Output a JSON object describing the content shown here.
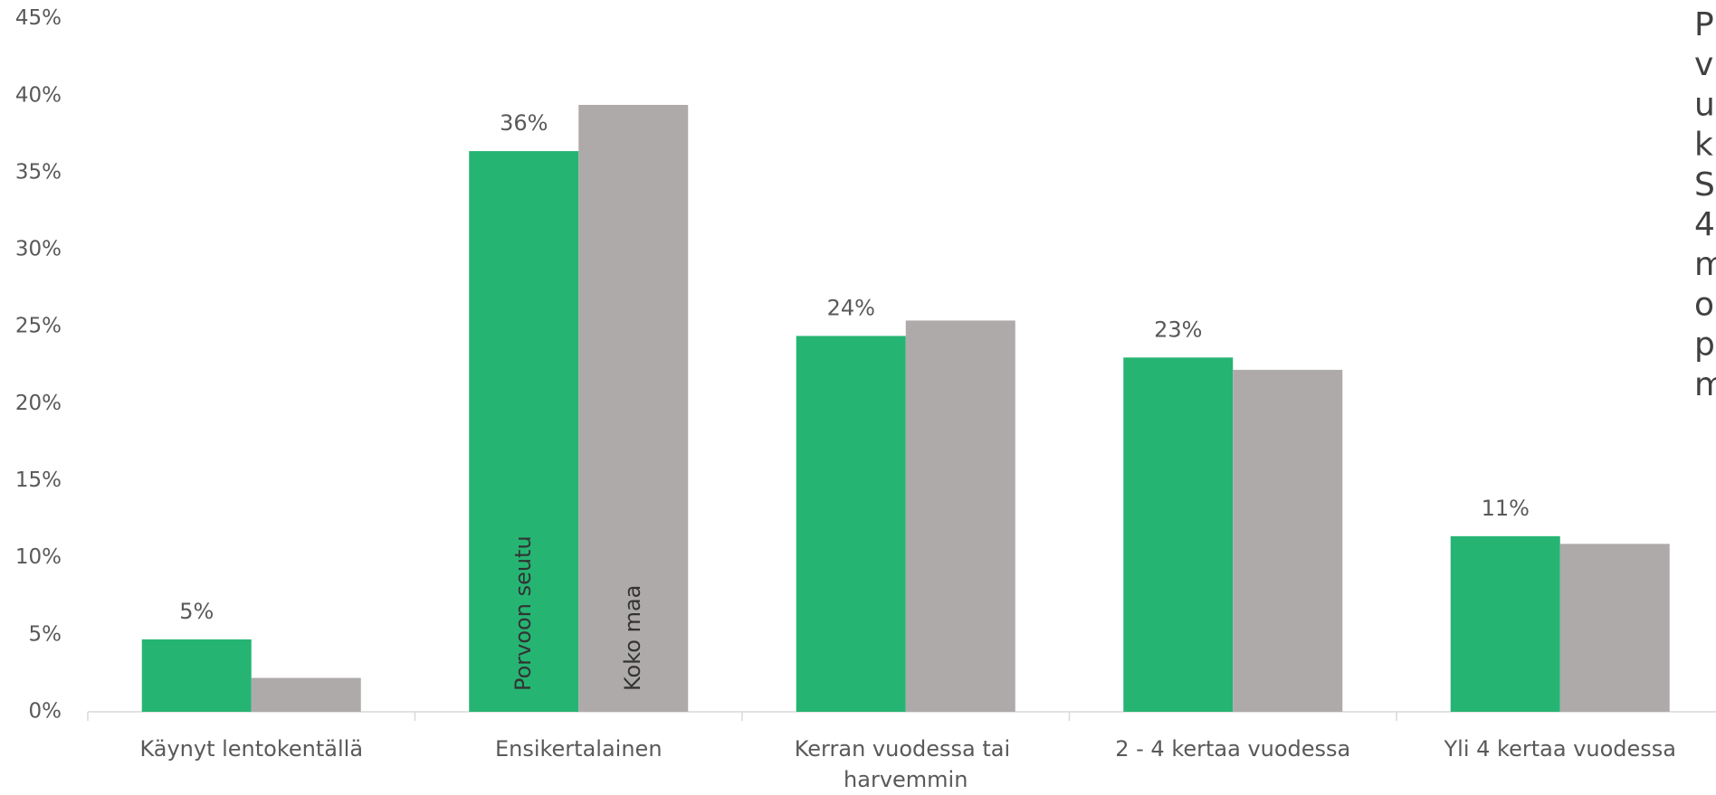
{
  "chart_data": {
    "type": "bar",
    "categories": [
      "Käynyt lentokentällä",
      "Ensikertalainen",
      "Kerran vuodessa tai harvemmin",
      "2 - 4 kertaa vuodessa",
      "Yli 4 kertaa vuodessa"
    ],
    "series": [
      {
        "name": "Porvoon seutu",
        "color": "#26b473",
        "values": [
          4.7,
          36.4,
          24.4,
          23.0,
          11.4
        ],
        "value_labels": [
          "5%",
          "36%",
          "24%",
          "23%",
          "11%"
        ]
      },
      {
        "name": "Koko maa",
        "color": "#aeaaaa",
        "values": [
          2.2,
          39.4,
          25.4,
          22.2,
          10.9
        ]
      }
    ],
    "ylim": [
      0,
      45
    ],
    "yticks": [
      {
        "value": 0,
        "label": "0%"
      },
      {
        "value": 5,
        "label": "5%"
      },
      {
        "value": 10,
        "label": "10%"
      },
      {
        "value": 15,
        "label": "15%"
      },
      {
        "value": 20,
        "label": "20%"
      },
      {
        "value": 25,
        "label": "25%"
      },
      {
        "value": 30,
        "label": "30%"
      },
      {
        "value": 35,
        "label": "35%"
      },
      {
        "value": 40,
        "label": "40%"
      },
      {
        "value": 45,
        "label": "45%"
      }
    ],
    "grid": false,
    "annotation_lines": [
      "P",
      "v",
      "u",
      "k",
      "S",
      "4",
      "m",
      "o",
      "p",
      "m"
    ]
  }
}
